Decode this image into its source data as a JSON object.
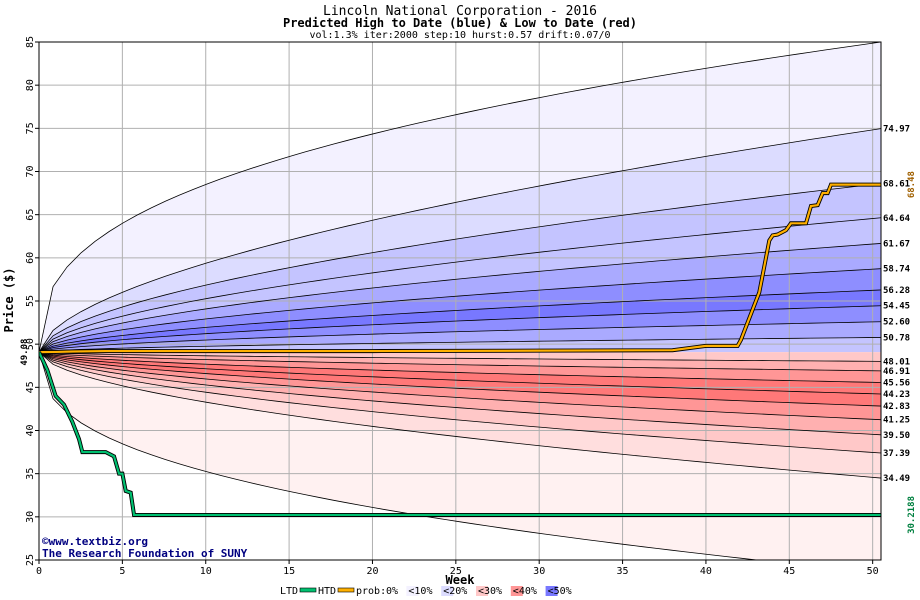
{
  "chart_data": {
    "type": "area",
    "title": "Lincoln National Corporation - 2016",
    "subtitle": "Predicted High to Date (blue) &  Low to Date (red)",
    "params": "vol:1.3% iter:2000 step:10 hurst:0.57 drift:0.07/0",
    "xlabel": "Week",
    "ylabel": "Price ($)",
    "xlim": [
      0,
      50.5
    ],
    "ylim": [
      25,
      85
    ],
    "x_ticks": [
      0,
      5,
      10,
      15,
      20,
      25,
      30,
      35,
      40,
      45,
      50
    ],
    "y_ticks": [
      25,
      30,
      35,
      40,
      45,
      50,
      55,
      60,
      65,
      70,
      75,
      80,
      85
    ],
    "grid": true,
    "start_price": 49.08,
    "start_price_label": "49.08",
    "high_to_date_label": "68.48",
    "low_to_date_label": "30.2188",
    "high_quantiles_at_end": [
      74.97,
      68.61,
      64.64,
      61.67,
      58.74,
      56.28,
      54.45,
      52.6,
      50.78
    ],
    "high_quantile_labels": [
      "74.97",
      "68.61",
      "64.64",
      "61.67",
      "58.74",
      "56.28",
      "54.45",
      "52.60",
      "50.78"
    ],
    "low_quantiles_at_end": [
      48.01,
      46.91,
      45.56,
      44.23,
      42.83,
      41.25,
      39.5,
      37.39,
      34.49
    ],
    "low_quantile_labels": [
      "48.01",
      "46.91",
      "45.56",
      "44.23",
      "42.83",
      "41.25",
      "39.50",
      "37.39",
      "34.49"
    ],
    "max_envelope_at_end": 85,
    "min_envelope_at_end": 23.5,
    "htd_series": {
      "name": "HTD",
      "x": [
        0,
        1,
        2,
        4,
        10,
        20,
        30,
        38,
        40,
        41.9,
        42.1,
        42.6,
        43.2,
        43.6,
        43.8,
        44.0,
        44.3,
        44.8,
        45.1,
        45.4,
        46.0,
        46.3,
        46.7,
        47.0,
        47.3,
        47.5,
        50.5
      ],
      "y": [
        49.08,
        49.1,
        49.15,
        49.2,
        49.2,
        49.2,
        49.25,
        49.3,
        49.8,
        49.8,
        50.5,
        53.0,
        56.0,
        60.0,
        62.0,
        62.6,
        62.7,
        63.2,
        64.0,
        64.0,
        64.0,
        66.0,
        66.1,
        67.5,
        67.5,
        68.48,
        68.48
      ]
    },
    "ltd_series": {
      "name": "LTD",
      "x": [
        0,
        0.5,
        1.0,
        1.5,
        2.0,
        2.4,
        2.6,
        3.0,
        4.0,
        4.5,
        4.8,
        5.0,
        5.2,
        5.5,
        5.7,
        6.0,
        50.5
      ],
      "y": [
        49.08,
        47.0,
        44.0,
        43.0,
        41.0,
        39.0,
        37.5,
        37.5,
        37.5,
        37.0,
        35.0,
        35.0,
        33.0,
        32.8,
        30.2188,
        30.2188,
        30.2188
      ]
    },
    "colors": {
      "band_0": "#f3f1ff",
      "band_10": "#dcdcff",
      "band_20": "#c4c4ff",
      "band_30": "#aaaaff",
      "band_40": "#8e8eff",
      "band_50": "#7878ff",
      "red_0": "#fff1f1",
      "red_10": "#ffdede",
      "red_20": "#ffc8c8",
      "red_30": "#ffb0b0",
      "red_40": "#ff9696",
      "red_50": "#ff7878",
      "htd": "#ffb000",
      "ltd": "#00c070",
      "high_label": "#a06000",
      "low_label": "#008040"
    }
  },
  "credit": {
    "site": "©www.textbiz.org",
    "org": "The Research Foundation of SUNY"
  },
  "legend": {
    "ltd": "LTD",
    "htd": "HTD",
    "prob": "prob:",
    "bins": [
      "0%",
      "<10%",
      "<20%",
      "<30%",
      "<40%",
      "<50%"
    ]
  }
}
